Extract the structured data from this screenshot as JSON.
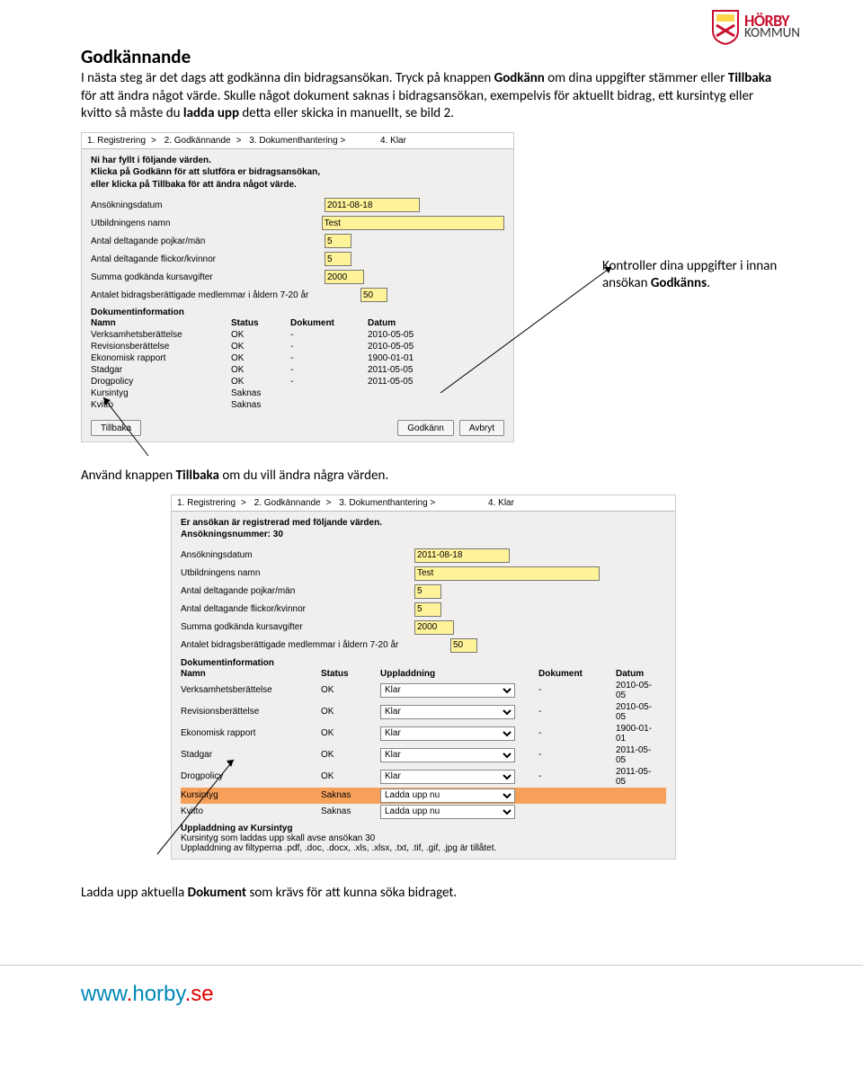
{
  "logo": {
    "horby": "HÖRBY",
    "kommun": "KOMMUN"
  },
  "heading": "Godkännande",
  "intro_lines": [
    "I nästa steg är det dags att godkänna din bidragsansökan. Tryck på knappen ",
    "Godkänn",
    " om dina uppgifter stämmer eller ",
    "Tillbaka",
    " för att ändra något värde. Skulle något dokument saknas i bidragsansökan, exempelvis för aktuellt bidrag, ett kursintyg eller kvitto så måste du ",
    "ladda upp",
    " detta eller skicka in manuellt, se bild 2."
  ],
  "steps": {
    "s1": "1. Registrering",
    "s2": "2. Godkännande",
    "s3": "3. Dokumenthantering >",
    "s4": "4. Klar",
    "gt": ">"
  },
  "panel1": {
    "intro": "Ni har fyllt i följande värden.\nKlicka på Godkänn för att slutföra er bidragsansökan,\neller klicka på Tillbaka för att ändra något värde.",
    "fields": {
      "date_l": "Ansökningsdatum",
      "date_v": "2011-08-18",
      "name_l": "Utbildningens namn",
      "name_v": "Test",
      "boys_l": "Antal deltagande pojkar/män",
      "boys_v": "5",
      "girls_l": "Antal deltagande flickor/kvinnor",
      "girls_v": "5",
      "sum_l": "Summa godkända kursavgifter",
      "sum_v": "2000",
      "mem_l": "Antalet bidragsberättigade medlemmar i åldern 7-20 år",
      "mem_v": "50"
    },
    "docinfo": "Dokumentinformation",
    "headers": {
      "n": "Namn",
      "s": "Status",
      "d": "Dokument",
      "dt": "Datum"
    },
    "rows": [
      {
        "n": "Verksamhetsberättelse",
        "s": "OK",
        "d": "-",
        "dt": "2010-05-05"
      },
      {
        "n": "Revisionsberättelse",
        "s": "OK",
        "d": "-",
        "dt": "2010-05-05"
      },
      {
        "n": "Ekonomisk rapport",
        "s": "OK",
        "d": "-",
        "dt": "1900-01-01"
      },
      {
        "n": "Stadgar",
        "s": "OK",
        "d": "-",
        "dt": "2011-05-05"
      },
      {
        "n": "Drogpolicy",
        "s": "OK",
        "d": "-",
        "dt": "2011-05-05"
      },
      {
        "n": "Kursintyg",
        "s": "Saknas",
        "d": "",
        "dt": ""
      },
      {
        "n": "Kvitto",
        "s": "Saknas",
        "d": "",
        "dt": ""
      }
    ],
    "buttons": {
      "back": "Tillbaka",
      "approve": "Godkänn",
      "cancel": "Avbryt"
    }
  },
  "callout1": "Kontroller dina uppgifter i innan ansökan Godkänns.",
  "callout1_bold": "Godkänns",
  "line_between_l": "Använd knappen ",
  "line_between_b": "Tillbaka",
  "line_between_r": " om du vill ändra några värden.",
  "panel2": {
    "intro": "Er ansökan är registrerad med följande värden.\nAnsökningsnummer: 30",
    "fields": {
      "date_l": "Ansökningsdatum",
      "date_v": "2011-08-18",
      "name_l": "Utbildningens namn",
      "name_v": "Test",
      "boys_l": "Antal deltagande pojkar/män",
      "boys_v": "5",
      "girls_l": "Antal deltagande flickor/kvinnor",
      "girls_v": "5",
      "sum_l": "Summa godkända kursavgifter",
      "sum_v": "2000",
      "mem_l": "Antalet bidragsberättigade medlemmar i åldern 7-20 år",
      "mem_v": "50"
    },
    "docinfo": "Dokumentinformation",
    "headers": {
      "n": "Namn",
      "s": "Status",
      "u": "Uppladdning",
      "d": "Dokument",
      "dt": "Datum"
    },
    "rows": [
      {
        "n": "Verksamhetsberättelse",
        "s": "OK",
        "u": "Klar",
        "d": "-",
        "dt": "2010-05-05",
        "miss": false
      },
      {
        "n": "Revisionsberättelse",
        "s": "OK",
        "u": "Klar",
        "d": "-",
        "dt": "2010-05-05",
        "miss": false
      },
      {
        "n": "Ekonomisk rapport",
        "s": "OK",
        "u": "Klar",
        "d": "-",
        "dt": "1900-01-01",
        "miss": false
      },
      {
        "n": "Stadgar",
        "s": "OK",
        "u": "Klar",
        "d": "-",
        "dt": "2011-05-05",
        "miss": false
      },
      {
        "n": "Drogpolicy",
        "s": "OK",
        "u": "Klar",
        "d": "-",
        "dt": "2011-05-05",
        "miss": false
      },
      {
        "n": "Kursintyg",
        "s": "Saknas",
        "u": "Ladda upp nu",
        "d": "",
        "dt": "",
        "miss": true
      },
      {
        "n": "Kvitto",
        "s": "Saknas",
        "u": "Ladda upp nu",
        "d": "",
        "dt": "",
        "miss": false
      }
    ],
    "upload_head": "Uppladdning av Kursintyg",
    "upload_l1": "Kursintyg som laddas upp skall avse ansökan 30",
    "upload_l2": "Uppladdning av filtyperna .pdf, .doc, .docx, .xls, .xlsx, .txt, .tif, .gif, .jpg är tillåtet."
  },
  "callout2_l": "Ladda upp aktuella ",
  "callout2_b": "Dokument",
  "callout2_r": " som krävs för att kunna söka bidraget.",
  "footer": {
    "www": "www",
    "dot": ".",
    "horby": "horby",
    "se": "se"
  }
}
